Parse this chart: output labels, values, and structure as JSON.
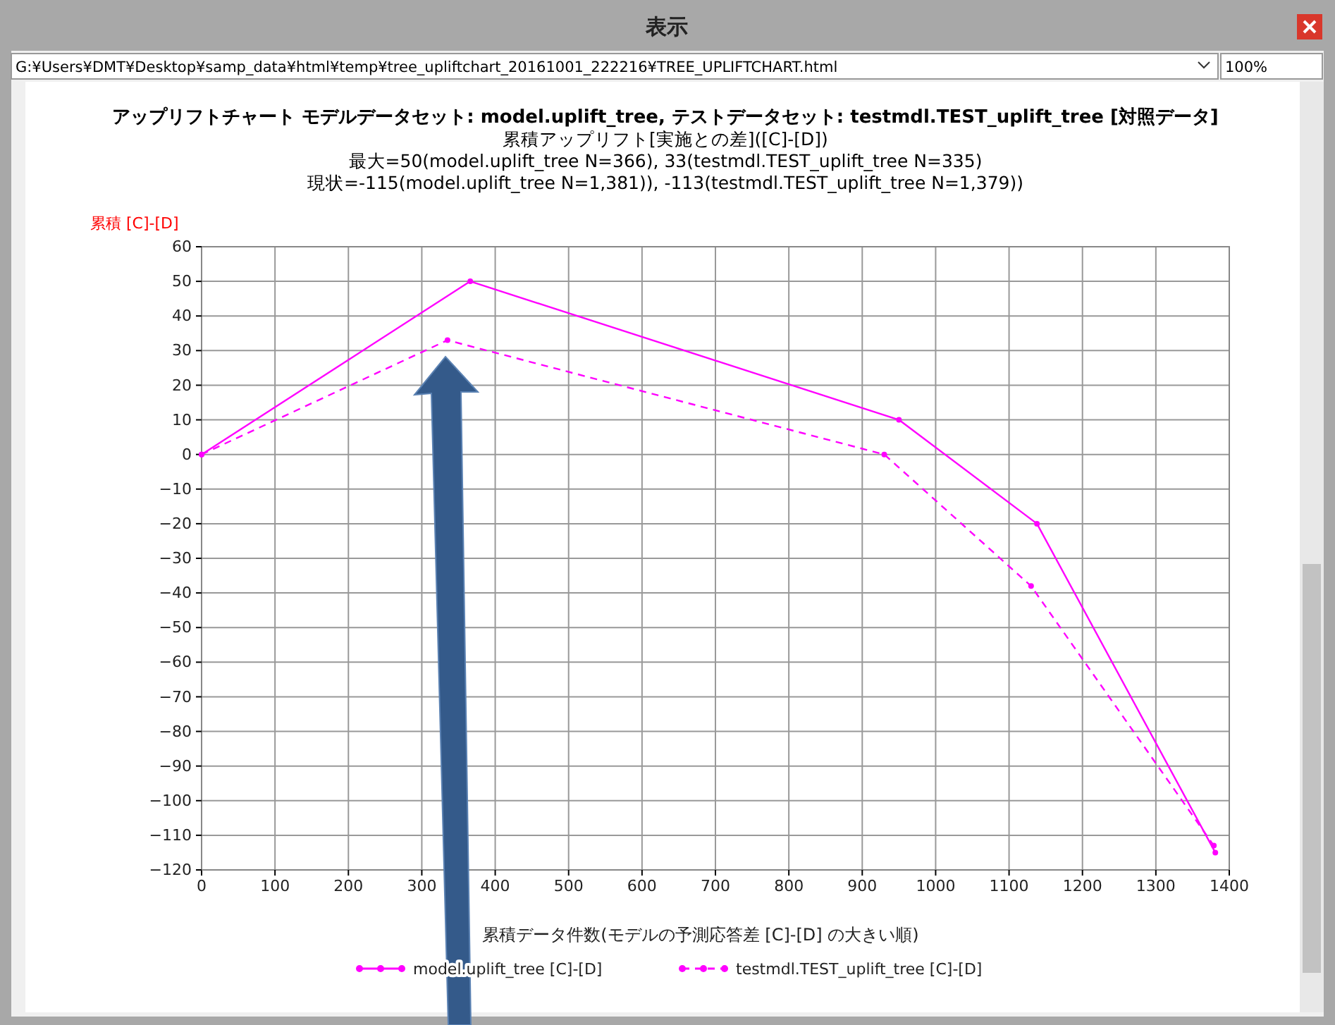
{
  "chart_data": {
    "type": "line",
    "title": "アップリフトチャート モデルデータセット: model.uplift_tree, テストデータセット: testmdl.TEST_uplift_tree [対照データ]",
    "subtitle": "累積アップリフト[実施との差]([C]-[D])\n最大=50(model.uplift_tree N=366), 33(testmdl.TEST_uplift_tree N=335)\n現状=-115(model.uplift_tree N=1,381)), -113(testmdl.TEST_uplift_tree N=1,379))",
    "xlabel": "累積データ件数(モデルの予測応答差 [C]-[D] の大きい順)",
    "ylabel": "累積 [C]-[D]",
    "annotations": [
      "表示",
      "G:¥Users¥DMT¥Desktop¥samp_data¥html¥temp¥tree_upliftchart_20161001_222216¥TREE_UPLIFTCHART.html",
      "100%"
    ],
    "series": [
      {
        "name": "model.uplift_tree [C]-[D]",
        "color": "#ff00ff",
        "line_style": "solid",
        "x": [
          0,
          366,
          950,
          1138,
          1381
        ],
        "values": [
          0,
          50,
          10,
          -20,
          -115
        ]
      },
      {
        "name": "testmdl.TEST_uplift_tree [C]-[D]",
        "color": "#ff00ff",
        "line_style": "dashed",
        "x": [
          0,
          335,
          930,
          1130,
          1379
        ],
        "values": [
          0,
          33,
          0,
          -38,
          -113
        ]
      }
    ],
    "xlim": [
      0,
      1400
    ],
    "xticks": [
      0,
      100,
      200,
      300,
      400,
      500,
      600,
      700,
      800,
      900,
      1000,
      1100,
      1200,
      1300,
      1400
    ],
    "ylim": [
      -120,
      60
    ],
    "yticks": [
      -120,
      -110,
      -100,
      -90,
      -80,
      -70,
      -60,
      -50,
      -40,
      -30,
      -20,
      -10,
      0,
      10,
      20,
      30,
      40,
      50,
      60
    ],
    "grid": true,
    "legend": "bottom",
    "marker": "circle"
  }
}
